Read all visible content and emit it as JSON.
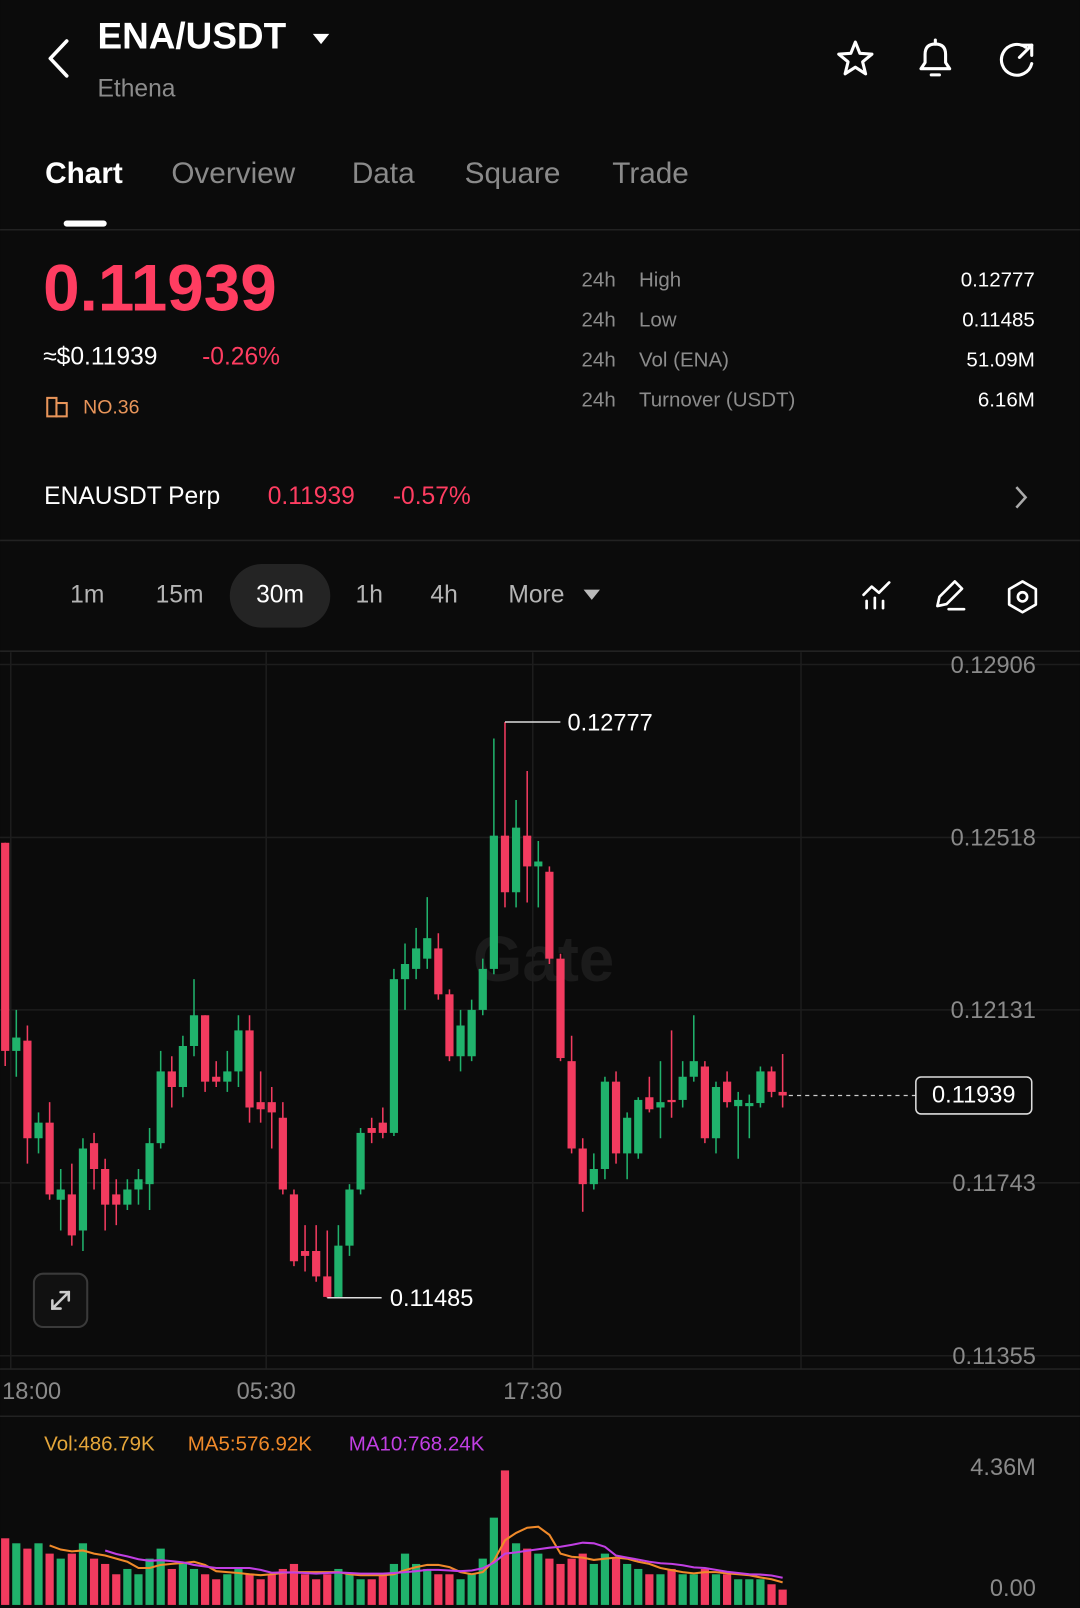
{
  "header": {
    "title": "ENA/USDT",
    "subtitle": "Ethena"
  },
  "tabs": [
    "Chart",
    "Overview",
    "Data",
    "Square",
    "Trade"
  ],
  "ticker": {
    "last": "0.11939",
    "usd": "≈$0.11939",
    "change": "-0.26%",
    "rank": "NO.36"
  },
  "stats": [
    [
      "24h",
      "High",
      "0.12777"
    ],
    [
      "24h",
      "Low",
      "0.11485"
    ],
    [
      "24h",
      "Vol (ENA)",
      "51.09M"
    ],
    [
      "24h",
      "Turnover (USDT)",
      "6.16M"
    ]
  ],
  "perp": {
    "name": "ENAUSDT Perp",
    "price": "0.11939",
    "change": "-0.57%"
  },
  "intervals": [
    "1m",
    "15m",
    "30m",
    "1h",
    "4h",
    "More"
  ],
  "watermark": "Gate",
  "chart_data": [
    {
      "type": "candlestick",
      "up_color": "#20b26c",
      "down_color": "#f23b5f",
      "grid": true,
      "categories": [
        null,
        "18:00",
        null,
        null,
        null,
        null,
        null,
        null,
        null,
        null,
        null,
        null,
        null,
        null,
        null,
        null,
        null,
        null,
        null,
        null,
        null,
        null,
        null,
        null,
        "05:30",
        null,
        null,
        null,
        null,
        null,
        null,
        null,
        null,
        null,
        null,
        null,
        null,
        null,
        null,
        null,
        null,
        null,
        null,
        null,
        null,
        null,
        null,
        null,
        "17:30",
        null,
        null,
        null,
        null,
        null,
        null,
        null,
        null,
        null,
        null,
        null,
        null,
        null,
        null,
        null,
        null,
        null,
        null,
        null,
        null,
        null,
        null
      ],
      "open": [
        0.12506,
        0.12039,
        0.12062,
        0.11843,
        0.11878,
        0.11705,
        0.11717,
        0.11636,
        0.11832,
        0.11774,
        0.11717,
        0.11694,
        0.11728,
        0.1174,
        0.11832,
        0.11993,
        0.11958,
        0.1205,
        0.12119,
        0.11981,
        0.1197,
        0.11993,
        0.12085,
        0.11924,
        0.11924,
        0.11889,
        0.11717,
        0.1159,
        0.1159,
        0.11533,
        0.11487,
        0.11602,
        0.11728,
        0.11866,
        0.11878,
        0.11855,
        0.122,
        0.12223,
        0.12246,
        0.12269,
        0.12166,
        0.12027,
        0.12027,
        0.12131,
        0.12223,
        0.12522,
        0.12395,
        0.12522,
        0.12453,
        0.12441,
        0.12246,
        0.12016,
        0.1182,
        0.1174,
        0.11774,
        0.1197,
        0.11809,
        0.11809,
        0.11935,
        0.11912,
        0.11929,
        0.11929,
        0.11981,
        0.12004,
        0.11843,
        0.1197,
        0.11915,
        0.11915,
        0.11922,
        0.11993,
        0.11947
      ],
      "high": [
        0.12506,
        0.12131,
        0.12096,
        0.11901,
        0.11924,
        0.11774,
        0.11786,
        0.11843,
        0.11855,
        0.11797,
        0.11751,
        0.11751,
        0.11774,
        0.11866,
        0.12039,
        0.12027,
        0.12073,
        0.122,
        0.12119,
        0.12016,
        0.12039,
        0.12119,
        0.12119,
        0.11993,
        0.11958,
        0.11924,
        0.11728,
        0.11648,
        0.11648,
        0.11636,
        0.11648,
        0.1174,
        0.11866,
        0.11889,
        0.11912,
        0.12223,
        0.1228,
        0.12315,
        0.12384,
        0.12303,
        0.12177,
        0.12131,
        0.12154,
        0.12246,
        0.1274,
        0.12777,
        0.12602,
        0.12667,
        0.1251,
        0.12453,
        0.12257,
        0.12073,
        0.11843,
        0.11809,
        0.11981,
        0.11993,
        0.11901,
        0.11935,
        0.11981,
        0.12016,
        0.12085,
        0.12016,
        0.12119,
        0.12016,
        0.1197,
        0.11993,
        0.11947,
        0.11941,
        0.12004,
        0.12004,
        0.12032
      ],
      "low": [
        0.12005,
        0.11981,
        0.11786,
        0.11809,
        0.11705,
        0.11636,
        0.11602,
        0.1159,
        0.11728,
        0.11636,
        0.11648,
        0.11682,
        0.11694,
        0.11682,
        0.1182,
        0.11912,
        0.11935,
        0.12027,
        0.11947,
        0.11958,
        0.11947,
        0.11958,
        0.11878,
        0.11878,
        0.1182,
        0.11717,
        0.11556,
        0.11544,
        0.11521,
        0.11485,
        0.11485,
        0.11579,
        0.11717,
        0.11832,
        0.11843,
        0.11848,
        0.12131,
        0.122,
        0.12223,
        0.12154,
        0.12016,
        0.11993,
        0.12016,
        0.12119,
        0.12211,
        0.12361,
        0.12361,
        0.12372,
        0.12361,
        0.12234,
        0.12016,
        0.11809,
        0.11678,
        0.11728,
        0.11751,
        0.11786,
        0.11751,
        0.11797,
        0.11901,
        0.11843,
        0.11889,
        0.11912,
        0.1197,
        0.11832,
        0.11809,
        0.11912,
        0.11797,
        0.11843,
        0.11912,
        0.11935,
        0.11912
      ],
      "close": [
        0.12039,
        0.12069,
        0.11843,
        0.11878,
        0.11717,
        0.11728,
        0.11625,
        0.1182,
        0.11774,
        0.11694,
        0.11694,
        0.11728,
        0.11751,
        0.11832,
        0.11993,
        0.11958,
        0.1205,
        0.12119,
        0.1197,
        0.1197,
        0.11993,
        0.12085,
        0.11912,
        0.11908,
        0.11901,
        0.11728,
        0.11567,
        0.11579,
        0.11533,
        0.11487,
        0.11602,
        0.11728,
        0.11855,
        0.11855,
        0.11855,
        0.122,
        0.12234,
        0.12269,
        0.12292,
        0.12166,
        0.12027,
        0.12096,
        0.12131,
        0.12223,
        0.12522,
        0.12395,
        0.1254,
        0.12453,
        0.12464,
        0.12246,
        0.12023,
        0.1182,
        0.1174,
        0.11774,
        0.1197,
        0.11809,
        0.11889,
        0.11929,
        0.11908,
        0.11924,
        0.11924,
        0.11981,
        0.12016,
        0.11843,
        0.11958,
        0.11924,
        0.11929,
        0.11922,
        0.11993,
        0.11947,
        0.11939
      ],
      "ylim": [
        0.11355,
        0.12906
      ],
      "yticks": [
        0.12906,
        0.12518,
        0.12131,
        0.11743,
        0.11355
      ],
      "annotations": {
        "high": 0.12777,
        "low": 0.11485,
        "last": 0.11939
      }
    },
    {
      "type": "bar",
      "label": "Vol:486.79K",
      "label_color": "#e5a63a",
      "values": [
        2.13,
        1.97,
        1.8,
        1.97,
        1.64,
        1.48,
        1.64,
        1.97,
        1.48,
        1.31,
        0.98,
        1.15,
        0.98,
        1.48,
        1.8,
        1.15,
        1.31,
        1.15,
        0.98,
        0.82,
        0.98,
        1.15,
        0.98,
        0.82,
        0.98,
        1.15,
        1.31,
        0.98,
        0.82,
        0.98,
        1.15,
        0.98,
        0.82,
        0.82,
        0.98,
        1.31,
        1.64,
        1.31,
        1.15,
        0.98,
        0.98,
        0.82,
        0.98,
        1.48,
        2.79,
        4.3,
        1.97,
        1.8,
        1.64,
        1.48,
        1.31,
        1.48,
        1.64,
        1.31,
        1.64,
        1.48,
        1.31,
        1.15,
        0.98,
        0.98,
        1.15,
        0.98,
        0.98,
        1.15,
        0.98,
        0.98,
        0.82,
        0.82,
        0.82,
        0.66,
        0.49
      ],
      "ylim": [
        0,
        4.36
      ],
      "yticks": [
        {
          "value": 4.36,
          "label": "4.36M"
        },
        {
          "value": 0,
          "label": "0.00"
        }
      ],
      "series": [
        {
          "name": "MA5:576.92K",
          "color": "#f08a2a",
          "values": [
            null,
            null,
            null,
            null,
            1.9,
            1.77,
            1.71,
            1.74,
            1.64,
            1.58,
            1.48,
            1.38,
            1.18,
            1.18,
            1.28,
            1.31,
            1.34,
            1.38,
            1.28,
            1.08,
            1.05,
            1.02,
            0.98,
            0.95,
            0.98,
            1.02,
            1.05,
            1.05,
            1.05,
            1.05,
            1.05,
            0.98,
            0.95,
            0.95,
            0.95,
            0.98,
            1.11,
            1.21,
            1.28,
            1.28,
            1.21,
            1.05,
            0.98,
            1.05,
            1.41,
            2.07,
            2.3,
            2.47,
            2.5,
            2.24,
            1.64,
            1.54,
            1.51,
            1.44,
            1.48,
            1.51,
            1.48,
            1.38,
            1.31,
            1.18,
            1.11,
            1.05,
            1.01,
            1.05,
            1.05,
            1.01,
            0.98,
            0.95,
            0.88,
            0.82,
            0.72
          ]
        },
        {
          "name": "MA10:768.24K",
          "color": "#c13fe3",
          "values": [
            null,
            null,
            null,
            null,
            null,
            null,
            null,
            null,
            null,
            1.74,
            1.63,
            1.55,
            1.46,
            1.41,
            1.43,
            1.4,
            1.36,
            1.28,
            1.23,
            1.18,
            1.18,
            1.18,
            1.18,
            1.12,
            1.03,
            1.04,
            1.04,
            1.02,
            1.0,
            1.02,
            1.04,
            1.02,
            1.0,
            1.0,
            1.0,
            1.02,
            1.05,
            1.08,
            1.12,
            1.12,
            1.1,
            1.08,
            1.1,
            1.17,
            1.35,
            1.64,
            1.68,
            1.73,
            1.78,
            1.83,
            1.86,
            1.92,
            1.99,
            1.97,
            1.86,
            1.58,
            1.51,
            1.45,
            1.38,
            1.33,
            1.31,
            1.27,
            1.2,
            1.18,
            1.12,
            1.06,
            1.02,
            0.98,
            0.97,
            0.94,
            0.87
          ]
        }
      ]
    }
  ]
}
